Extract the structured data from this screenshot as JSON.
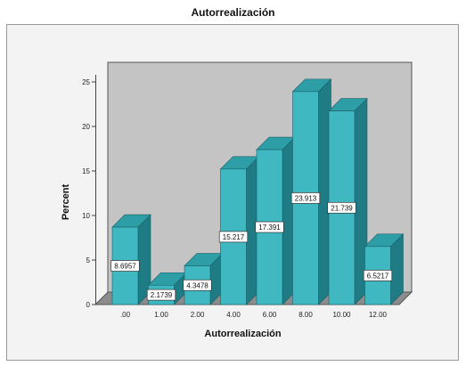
{
  "chart_data": {
    "type": "bar",
    "title": "Autorrealización",
    "xlabel": "Autorrealización",
    "ylabel": "Percent",
    "categories": [
      ".00",
      "1.00",
      "2.00",
      "4.00",
      "6.00",
      "8.00",
      "10.00",
      "12.00"
    ],
    "values": [
      8.6957,
      2.1739,
      4.3478,
      15.217,
      17.391,
      23.913,
      21.739,
      6.5217
    ],
    "data_labels": [
      "8.6957",
      "2.1739",
      "4.3478",
      "15.217",
      "17.391",
      "23.913",
      "21.739",
      "6.5217"
    ],
    "ylim": [
      0,
      25
    ],
    "yticks": [
      0,
      5,
      10,
      15,
      20,
      25
    ],
    "grid": false,
    "legend": "none",
    "colors": {
      "bar_front": "#3fb8c2",
      "bar_top": "#2e9ea6",
      "bar_side": "#1f7b84",
      "wall": "#c4c4c4",
      "floor": "#8c8c8c",
      "frame_bg": "#f3f3f3"
    }
  }
}
